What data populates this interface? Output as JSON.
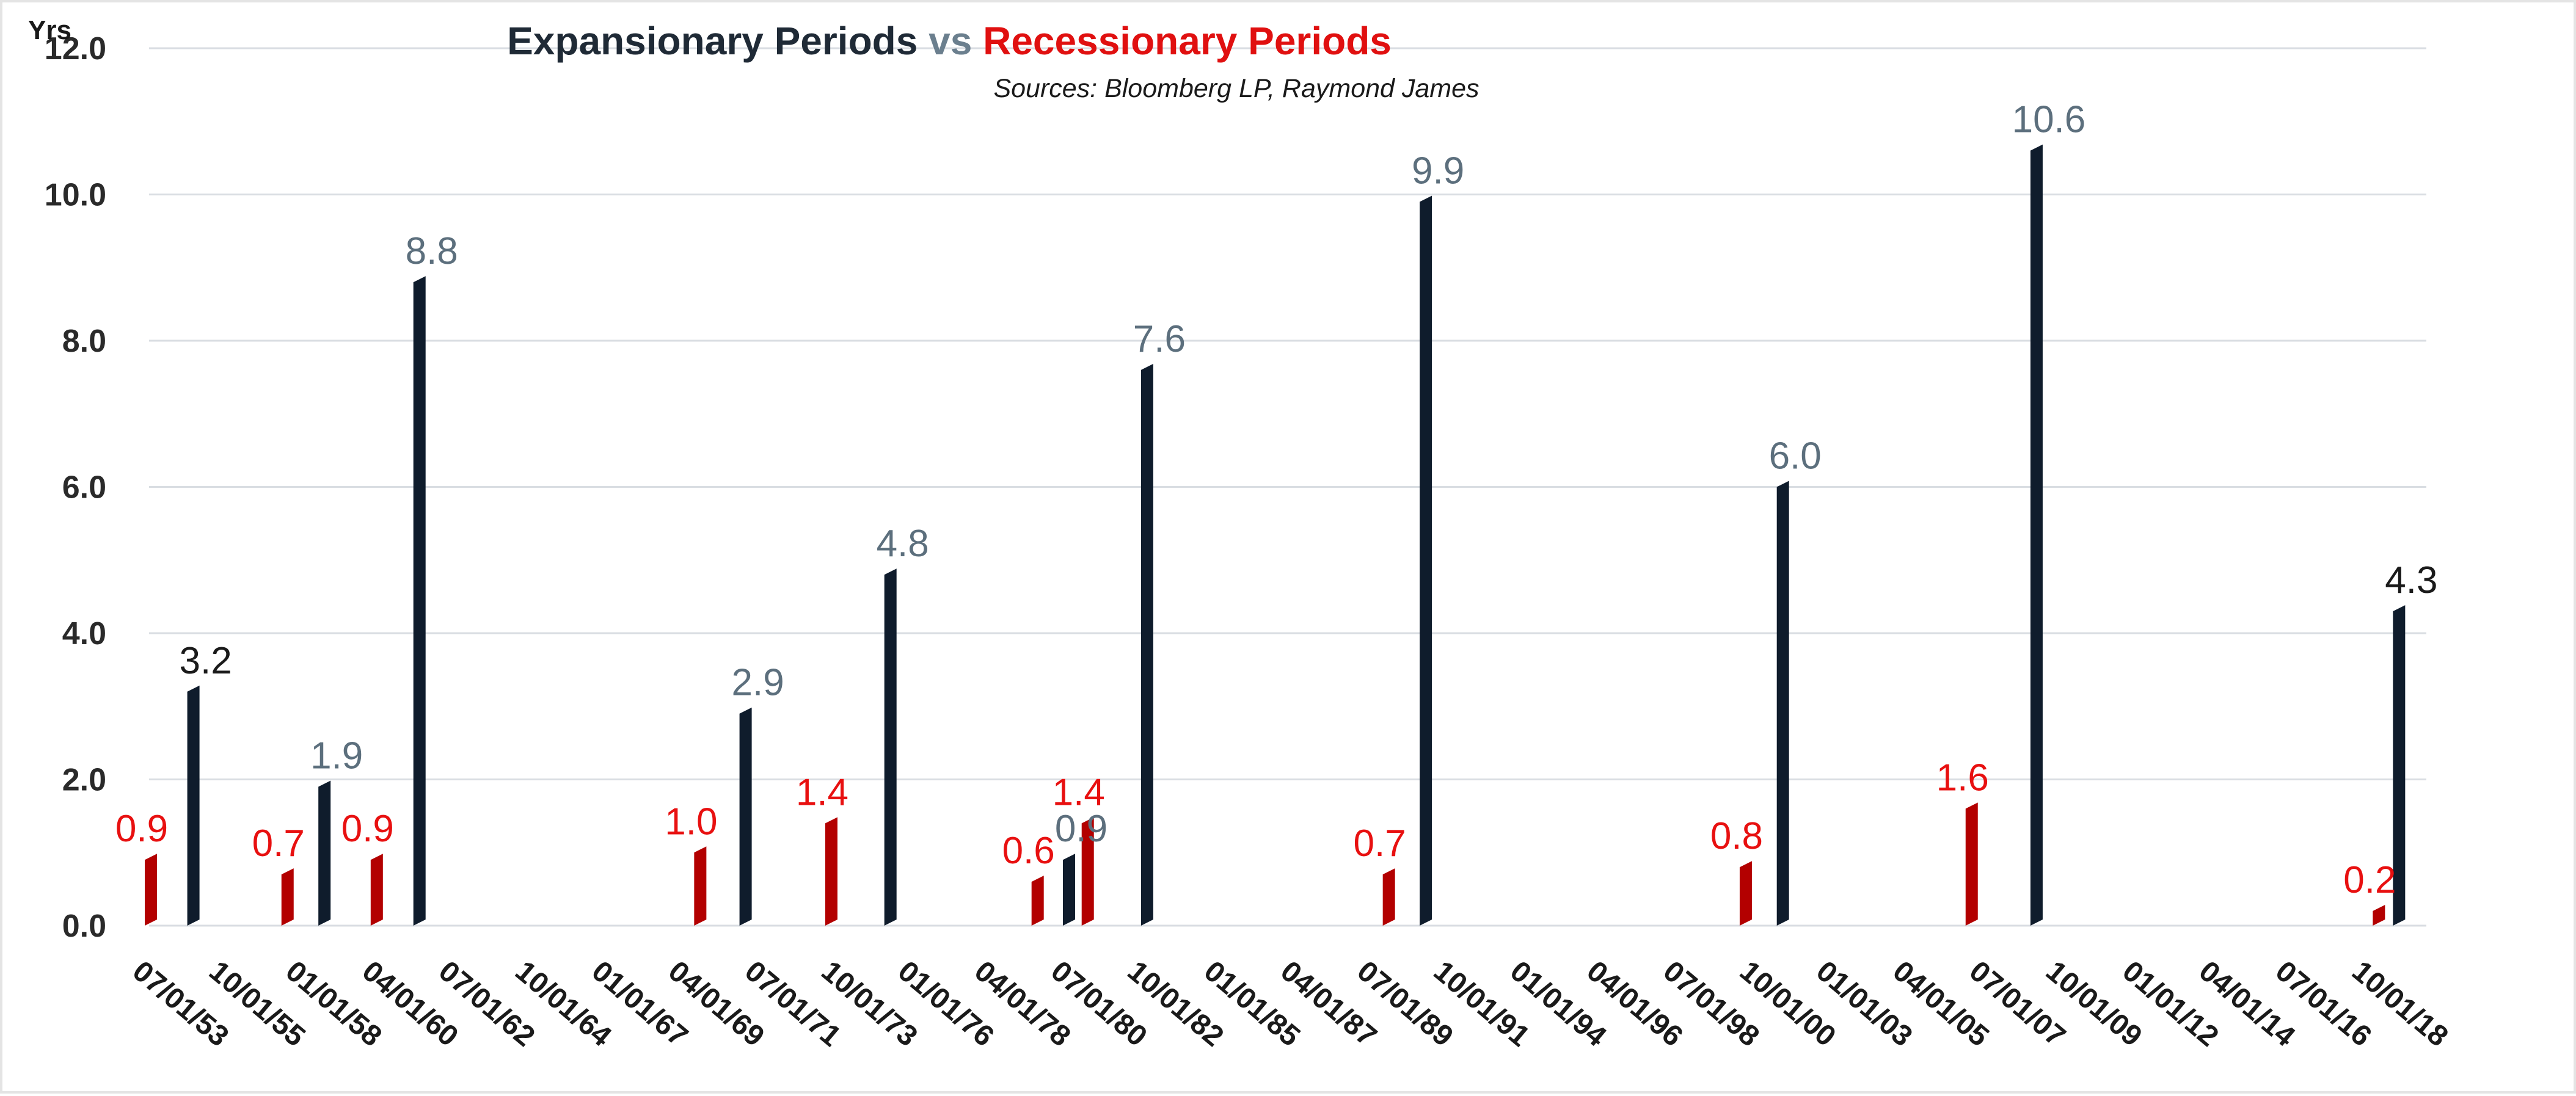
{
  "chart_data": {
    "type": "bar",
    "title_parts": [
      {
        "text": "Expansionary Periods",
        "color": "#1f2a36"
      },
      {
        "text": " vs ",
        "color": "#6b7f8e"
      },
      {
        "text": "Recessionary Periods",
        "color": "#e01010"
      }
    ],
    "subtitle": "Sources: Bloomberg LP, Raymond James",
    "y_unit": "Yrs",
    "ylim": [
      0,
      12
    ],
    "y_ticks": [
      "0.0",
      "2.0",
      "4.0",
      "6.0",
      "8.0",
      "10.0",
      "12.0"
    ],
    "grid": true,
    "x_domain": [
      "1953-07-01",
      "2020-07-01"
    ],
    "x_ticks": [
      "07/01/53",
      "10/01/55",
      "01/01/58",
      "04/01/60",
      "07/01/62",
      "10/01/64",
      "01/01/67",
      "04/01/69",
      "07/01/71",
      "10/01/73",
      "01/01/76",
      "04/01/78",
      "07/01/80",
      "10/01/82",
      "01/01/85",
      "04/01/87",
      "07/01/89",
      "10/01/91",
      "01/01/94",
      "04/01/96",
      "07/01/98",
      "10/01/00",
      "01/01/03",
      "04/01/05",
      "07/01/07",
      "10/01/09",
      "01/01/12",
      "04/01/14",
      "07/01/16",
      "10/01/18"
    ],
    "series": [
      {
        "name": "Recessionary Periods",
        "color": "#b30000",
        "label_color": "#e81010",
        "points": [
          {
            "date": "1953-07-01",
            "value": 0.9,
            "label": "0.9"
          },
          {
            "date": "1957-08-01",
            "value": 0.7,
            "label": "0.7"
          },
          {
            "date": "1960-04-01",
            "value": 0.9,
            "label": "0.9"
          },
          {
            "date": "1969-12-01",
            "value": 1.0,
            "label": "1.0"
          },
          {
            "date": "1973-11-01",
            "value": 1.4,
            "label": "1.4"
          },
          {
            "date": "1980-01-01",
            "value": 0.6,
            "label": "0.6"
          },
          {
            "date": "1981-07-01",
            "value": 1.4,
            "label": "1.4"
          },
          {
            "date": "1990-07-01",
            "value": 0.7,
            "label": "0.7"
          },
          {
            "date": "2001-03-01",
            "value": 0.8,
            "label": "0.8"
          },
          {
            "date": "2007-12-01",
            "value": 1.6,
            "label": "1.6"
          },
          {
            "date": "2020-02-01",
            "value": 0.2,
            "label": "0.2"
          }
        ]
      },
      {
        "name": "Expansionary Periods",
        "color": "#0f1c2c",
        "points": [
          {
            "date": "1954-05-01",
            "value": 3.2,
            "label": "3.2",
            "label_color": "#1a1a1a"
          },
          {
            "date": "1958-04-01",
            "value": 1.9,
            "label": "1.9",
            "label_color": "#5c6f7d"
          },
          {
            "date": "1961-02-01",
            "value": 8.8,
            "label": "8.8",
            "label_color": "#5c6f7d"
          },
          {
            "date": "1970-11-01",
            "value": 2.9,
            "label": "2.9",
            "label_color": "#5c6f7d"
          },
          {
            "date": "1975-03-01",
            "value": 4.8,
            "label": "4.8",
            "label_color": "#5c6f7d"
          },
          {
            "date": "1980-07-01",
            "value": 0.9,
            "label": "0.9",
            "label_color": "#5c6f7d"
          },
          {
            "date": "1982-11-01",
            "value": 7.6,
            "label": "7.6",
            "label_color": "#5c6f7d"
          },
          {
            "date": "1991-03-01",
            "value": 9.9,
            "label": "9.9",
            "label_color": "#5c6f7d"
          },
          {
            "date": "2001-11-01",
            "value": 6.0,
            "label": "6.0",
            "label_color": "#5c6f7d"
          },
          {
            "date": "2009-06-01",
            "value": 10.6,
            "label": "10.6",
            "label_color": "#5c6f7d"
          },
          {
            "date": "2020-04-01",
            "value": 4.3,
            "label": "4.3",
            "label_color": "#1a1a1a"
          }
        ]
      }
    ]
  }
}
